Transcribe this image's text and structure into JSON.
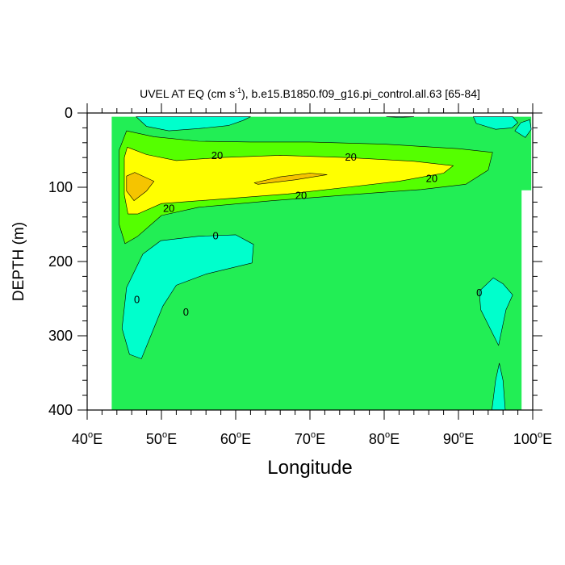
{
  "chart_data": {
    "type": "contour",
    "title": "UVEL AT EQ (cm s",
    "title_superscript": "-1",
    "title_rest": "), b.e15.B1850.f09_g16.pi_control.all.63 [65-84]",
    "xlabel": "Longitude",
    "ylabel": "DEPTH (m)",
    "xlim": [
      40,
      100
    ],
    "ylim": [
      0,
      400
    ],
    "y_inverted": true,
    "x_ticks": [
      {
        "value": 40,
        "num": "40",
        "suffix": "E"
      },
      {
        "value": 50,
        "num": "50",
        "suffix": "E"
      },
      {
        "value": 60,
        "num": "60",
        "suffix": "E"
      },
      {
        "value": 70,
        "num": "70",
        "suffix": "E"
      },
      {
        "value": 80,
        "num": "80",
        "suffix": "E"
      },
      {
        "value": 90,
        "num": "90",
        "suffix": "E"
      },
      {
        "value": 100,
        "num": "100",
        "suffix": "E"
      }
    ],
    "y_ticks": [
      {
        "value": 0,
        "label": "0"
      },
      {
        "value": 100,
        "label": "100"
      },
      {
        "value": 200,
        "label": "200"
      },
      {
        "value": 300,
        "label": "300"
      },
      {
        "value": 400,
        "label": "400"
      }
    ],
    "colors": {
      "background_field": "#22ee55",
      "negative": "#00ffcc",
      "band_10_20": "#55ff00",
      "band_20_30": "#ffff00",
      "band_30_40": "#f5c400",
      "line": "#000000"
    },
    "regions": [
      {
        "name": "background",
        "color": "background_field",
        "points": [
          [
            43.3,
            5
          ],
          [
            99.8,
            5
          ],
          [
            99.8,
            104
          ],
          [
            98.5,
            104
          ],
          [
            98.5,
            400
          ],
          [
            43.3,
            400
          ]
        ]
      },
      {
        "name": "negative-top-left",
        "color": "negative",
        "points": [
          [
            46.6,
            5
          ],
          [
            48,
            18
          ],
          [
            51,
            24
          ],
          [
            55,
            21
          ],
          [
            59,
            17
          ],
          [
            61,
            10
          ],
          [
            62,
            5
          ]
        ]
      },
      {
        "name": "negative-top-mid",
        "color": "negative",
        "points": [
          [
            80.3,
            5
          ],
          [
            82,
            6
          ],
          [
            84,
            5
          ]
        ]
      },
      {
        "name": "negative-top-right",
        "color": "negative",
        "points": [
          [
            92,
            5
          ],
          [
            92.4,
            14
          ],
          [
            95,
            22
          ],
          [
            97.2,
            20
          ],
          [
            98,
            13
          ],
          [
            97.3,
            5
          ]
        ]
      },
      {
        "name": "negative-top-right-small",
        "color": "negative",
        "points": [
          [
            98.4,
            13
          ],
          [
            99.6,
            9
          ],
          [
            99.8,
            22
          ],
          [
            99,
            33
          ],
          [
            97.6,
            24
          ]
        ]
      },
      {
        "name": "jet-10-20",
        "color": "band_10_20",
        "points": [
          [
            45.3,
            24
          ],
          [
            49,
            32
          ],
          [
            55,
            38
          ],
          [
            62,
            39
          ],
          [
            70,
            39
          ],
          [
            80,
            42
          ],
          [
            90,
            48
          ],
          [
            94.6,
            53
          ],
          [
            94,
            77
          ],
          [
            91,
            96
          ],
          [
            85,
            103
          ],
          [
            78,
            108
          ],
          [
            65,
            118
          ],
          [
            55,
            127
          ],
          [
            50,
            138
          ],
          [
            46.8,
            166
          ],
          [
            45.1,
            176
          ],
          [
            44.3,
            150
          ],
          [
            44.3,
            50
          ]
        ]
      },
      {
        "name": "jet-20-30",
        "color": "band_20_30",
        "points": [
          [
            45.4,
            46
          ],
          [
            48,
            56
          ],
          [
            52,
            64
          ],
          [
            58,
            60
          ],
          [
            66,
            57
          ],
          [
            75,
            60
          ],
          [
            84,
            65
          ],
          [
            89.3,
            71
          ],
          [
            88,
            81
          ],
          [
            82,
            92
          ],
          [
            75,
            100
          ],
          [
            67,
            109
          ],
          [
            58,
            116
          ],
          [
            50,
            122
          ],
          [
            46.8,
            136
          ],
          [
            45.5,
            136
          ],
          [
            45,
            110
          ],
          [
            45,
            60
          ]
        ]
      },
      {
        "name": "core-30-40-left",
        "color": "band_30_40",
        "points": [
          [
            46.4,
            80
          ],
          [
            49,
            92
          ],
          [
            48,
            105
          ],
          [
            46.3,
            118
          ],
          [
            45.3,
            105
          ],
          [
            45.3,
            85
          ]
        ]
      },
      {
        "name": "core-30-40-mid",
        "color": "band_30_40",
        "points": [
          [
            62.5,
            94
          ],
          [
            66,
            86
          ],
          [
            70,
            81
          ],
          [
            72.3,
            83
          ],
          [
            68,
            90
          ],
          [
            63,
            96
          ]
        ]
      },
      {
        "name": "negative-deep-left",
        "color": "negative",
        "points": [
          [
            49.9,
            172
          ],
          [
            55,
            166
          ],
          [
            60,
            164
          ],
          [
            62.4,
            177
          ],
          [
            62.2,
            202
          ],
          [
            56,
            217
          ],
          [
            52,
            232
          ],
          [
            50.2,
            260
          ],
          [
            47.3,
            331
          ],
          [
            45.7,
            325
          ],
          [
            44.7,
            290
          ],
          [
            45.3,
            235
          ],
          [
            47.5,
            190
          ]
        ]
      },
      {
        "name": "negative-deep-right",
        "color": "negative",
        "points": [
          [
            94.7,
            222
          ],
          [
            96,
            230
          ],
          [
            97.3,
            245
          ],
          [
            96.4,
            265
          ],
          [
            95.4,
            313
          ],
          [
            93,
            265
          ],
          [
            92.8,
            240
          ]
        ]
      },
      {
        "name": "negative-deep-right-bottom",
        "color": "negative",
        "points": [
          [
            95.5,
            337
          ],
          [
            96,
            360
          ],
          [
            96.3,
            400
          ],
          [
            94.5,
            400
          ],
          [
            95,
            360
          ]
        ]
      }
    ],
    "contour_labels": [
      {
        "text": "20",
        "x": 57.5,
        "y": 57
      },
      {
        "text": "20",
        "x": 75.5,
        "y": 59
      },
      {
        "text": "20",
        "x": 86.4,
        "y": 88
      },
      {
        "text": "20",
        "x": 68.8,
        "y": 111
      },
      {
        "text": "20",
        "x": 51.0,
        "y": 128
      },
      {
        "text": "0",
        "x": 57.3,
        "y": 165
      },
      {
        "text": "0",
        "x": 46.7,
        "y": 251
      },
      {
        "text": "0",
        "x": 53.3,
        "y": 268
      },
      {
        "text": "0",
        "x": 92.8,
        "y": 242
      }
    ]
  }
}
